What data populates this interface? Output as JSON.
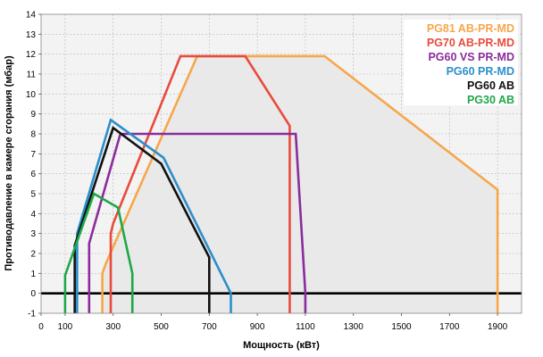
{
  "chart_data": {
    "type": "line",
    "title": "",
    "xlabel": "Мощность  (кВт)",
    "ylabel": "Противодавление в камере сгорания (мбар)",
    "xlim": [
      0,
      2000
    ],
    "ylim": [
      -1,
      14
    ],
    "x_ticks": [
      0,
      100,
      300,
      500,
      700,
      900,
      1100,
      1300,
      1500,
      1700,
      1900
    ],
    "y_ticks": [
      -1,
      0,
      1,
      2,
      3,
      4,
      5,
      6,
      7,
      8,
      9,
      10,
      11,
      12,
      13,
      14
    ],
    "grid": true,
    "background": "#f3f3f3",
    "legend_position": "top-right",
    "series": [
      {
        "name": "PG81 AB-PR-MD",
        "color": "#f7a64a",
        "points": [
          [
            255,
            -1
          ],
          [
            255,
            1
          ],
          [
            270,
            1.5
          ],
          [
            650,
            11.9
          ],
          [
            1180,
            11.9
          ],
          [
            1900,
            5.2
          ],
          [
            1900,
            -1
          ]
        ]
      },
      {
        "name": "PG70 AB-PR-MD",
        "color": "#e84b3c",
        "points": [
          [
            290,
            -1
          ],
          [
            290,
            3
          ],
          [
            300,
            3.5
          ],
          [
            580,
            11.9
          ],
          [
            850,
            11.9
          ],
          [
            1035,
            8.4
          ],
          [
            1035,
            -1
          ]
        ]
      },
      {
        "name": "PG60 VS PR-MD",
        "color": "#8b2c9c",
        "points": [
          [
            200,
            -1
          ],
          [
            200,
            2.5
          ],
          [
            330,
            8
          ],
          [
            1060,
            8
          ],
          [
            1100,
            0
          ],
          [
            1100,
            -1
          ]
        ]
      },
      {
        "name": "PG60 PR-MD",
        "color": "#2b8fcb",
        "points": [
          [
            150,
            -1
          ],
          [
            150,
            3
          ],
          [
            290,
            8.7
          ],
          [
            510,
            6.8
          ],
          [
            790,
            0
          ],
          [
            790,
            -1
          ]
        ]
      },
      {
        "name": "PG60 AB",
        "color": "#111111",
        "points": [
          [
            140,
            -1
          ],
          [
            140,
            2.4
          ],
          [
            300,
            8.3
          ],
          [
            500,
            6.5
          ],
          [
            700,
            1.8
          ],
          [
            700,
            -1
          ]
        ]
      },
      {
        "name": "PG30 AB",
        "color": "#1ea84a",
        "points": [
          [
            100,
            -1
          ],
          [
            100,
            0.9
          ],
          [
            220,
            5
          ],
          [
            320,
            4.3
          ],
          [
            380,
            1
          ],
          [
            380,
            -1
          ]
        ]
      }
    ]
  }
}
